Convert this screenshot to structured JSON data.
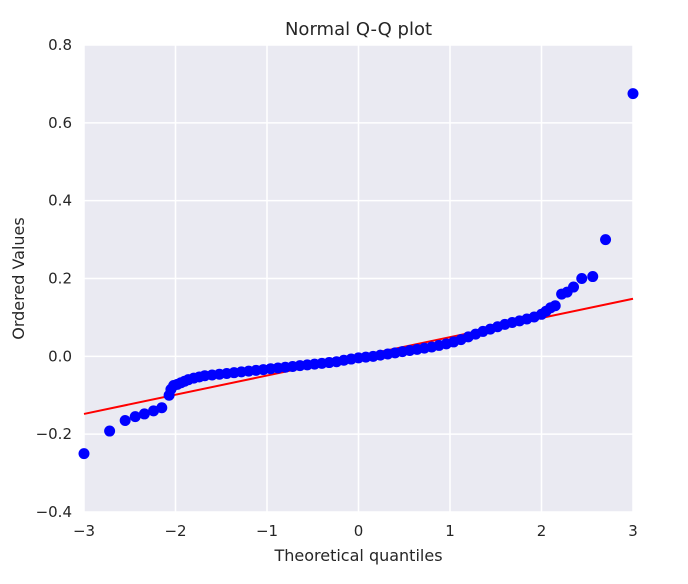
{
  "chart_data": {
    "type": "scatter",
    "title": "Normal Q-Q plot",
    "xlabel": "Theoretical quantiles",
    "ylabel": "Ordered Values",
    "xlim": [
      -3,
      3
    ],
    "ylim": [
      -0.4,
      0.8
    ],
    "xticks": [
      -3,
      -2,
      -1,
      0,
      1,
      2,
      3
    ],
    "xtick_labels": [
      "−3",
      "−2",
      "−1",
      "0",
      "1",
      "2",
      "3"
    ],
    "yticks": [
      -0.4,
      -0.2,
      0.0,
      0.2,
      0.4,
      0.6,
      0.8
    ],
    "ytick_labels": [
      "−0.4",
      "−0.2",
      "0.0",
      "0.2",
      "0.4",
      "0.6",
      "0.8"
    ],
    "grid": true,
    "colors": {
      "background": "#eaeaf2",
      "grid": "#ffffff",
      "points": "#0000ff",
      "fit_line": "#ff0000",
      "text": "#262626"
    },
    "fit_line": {
      "x": [
        -3,
        3
      ],
      "y": [
        -0.148,
        0.148
      ]
    },
    "points": {
      "x": [
        -3.0,
        -2.72,
        -2.55,
        -2.44,
        -2.34,
        -2.24,
        -2.15,
        -2.07,
        -2.05,
        -2.02,
        -1.98,
        -1.94,
        -1.9,
        -1.86,
        -1.8,
        -1.74,
        -1.68,
        -1.6,
        -1.52,
        -1.44,
        -1.36,
        -1.28,
        -1.2,
        -1.12,
        -1.04,
        -0.96,
        -0.88,
        -0.8,
        -0.72,
        -0.64,
        -0.56,
        -0.48,
        -0.4,
        -0.32,
        -0.24,
        -0.16,
        -0.08,
        0.0,
        0.08,
        0.16,
        0.24,
        0.32,
        0.4,
        0.48,
        0.56,
        0.64,
        0.72,
        0.8,
        0.88,
        0.96,
        1.04,
        1.12,
        1.2,
        1.28,
        1.36,
        1.44,
        1.52,
        1.6,
        1.68,
        1.76,
        1.84,
        1.92,
        2.0,
        2.05,
        2.1,
        2.15,
        2.22,
        2.28,
        2.35,
        2.44,
        2.56,
        2.7,
        3.0
      ],
      "y": [
        -0.25,
        -0.192,
        -0.165,
        -0.155,
        -0.148,
        -0.14,
        -0.132,
        -0.1,
        -0.085,
        -0.075,
        -0.072,
        -0.068,
        -0.064,
        -0.06,
        -0.056,
        -0.053,
        -0.05,
        -0.048,
        -0.046,
        -0.044,
        -0.042,
        -0.04,
        -0.038,
        -0.036,
        -0.034,
        -0.032,
        -0.03,
        -0.028,
        -0.026,
        -0.024,
        -0.022,
        -0.02,
        -0.018,
        -0.016,
        -0.014,
        -0.01,
        -0.007,
        -0.004,
        -0.002,
        0.0,
        0.003,
        0.006,
        0.009,
        0.012,
        0.015,
        0.018,
        0.021,
        0.024,
        0.028,
        0.032,
        0.037,
        0.043,
        0.05,
        0.057,
        0.064,
        0.07,
        0.076,
        0.082,
        0.087,
        0.091,
        0.096,
        0.101,
        0.108,
        0.116,
        0.125,
        0.13,
        0.16,
        0.165,
        0.178,
        0.2,
        0.205,
        0.3,
        0.675
      ]
    }
  }
}
